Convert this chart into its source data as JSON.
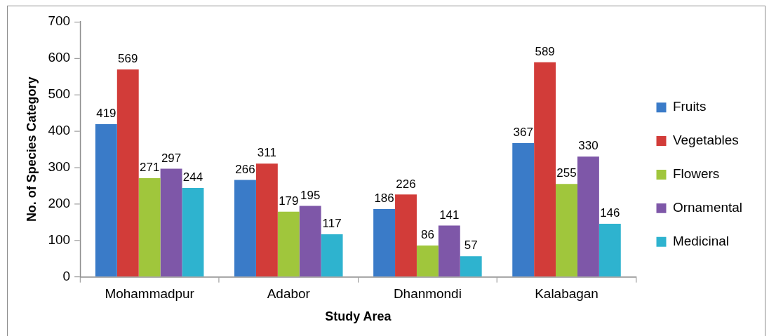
{
  "chart_data": {
    "type": "bar",
    "categories": [
      "Mohammadpur",
      "Adabor",
      "Dhanmondi",
      "Kalabagan"
    ],
    "series": [
      {
        "name": "Fruits",
        "color": "#3a7bc8",
        "values": [
          419,
          266,
          186,
          367
        ]
      },
      {
        "name": "Vegetables",
        "color": "#d23c39",
        "values": [
          569,
          311,
          226,
          589
        ]
      },
      {
        "name": "Flowers",
        "color": "#a0c63c",
        "values": [
          271,
          179,
          86,
          255
        ]
      },
      {
        "name": "Ornamental",
        "color": "#7e57a8",
        "values": [
          297,
          195,
          141,
          330
        ]
      },
      {
        "name": "Medicinal",
        "color": "#2eb3cf",
        "values": [
          244,
          117,
          57,
          146
        ]
      }
    ],
    "xlabel": "Study Area",
    "ylabel": "No. of Species Category",
    "ylim": [
      0,
      700
    ],
    "yticks": [
      0,
      100,
      200,
      300,
      400,
      500,
      600,
      700
    ],
    "data_labels": true,
    "legend": "right"
  }
}
